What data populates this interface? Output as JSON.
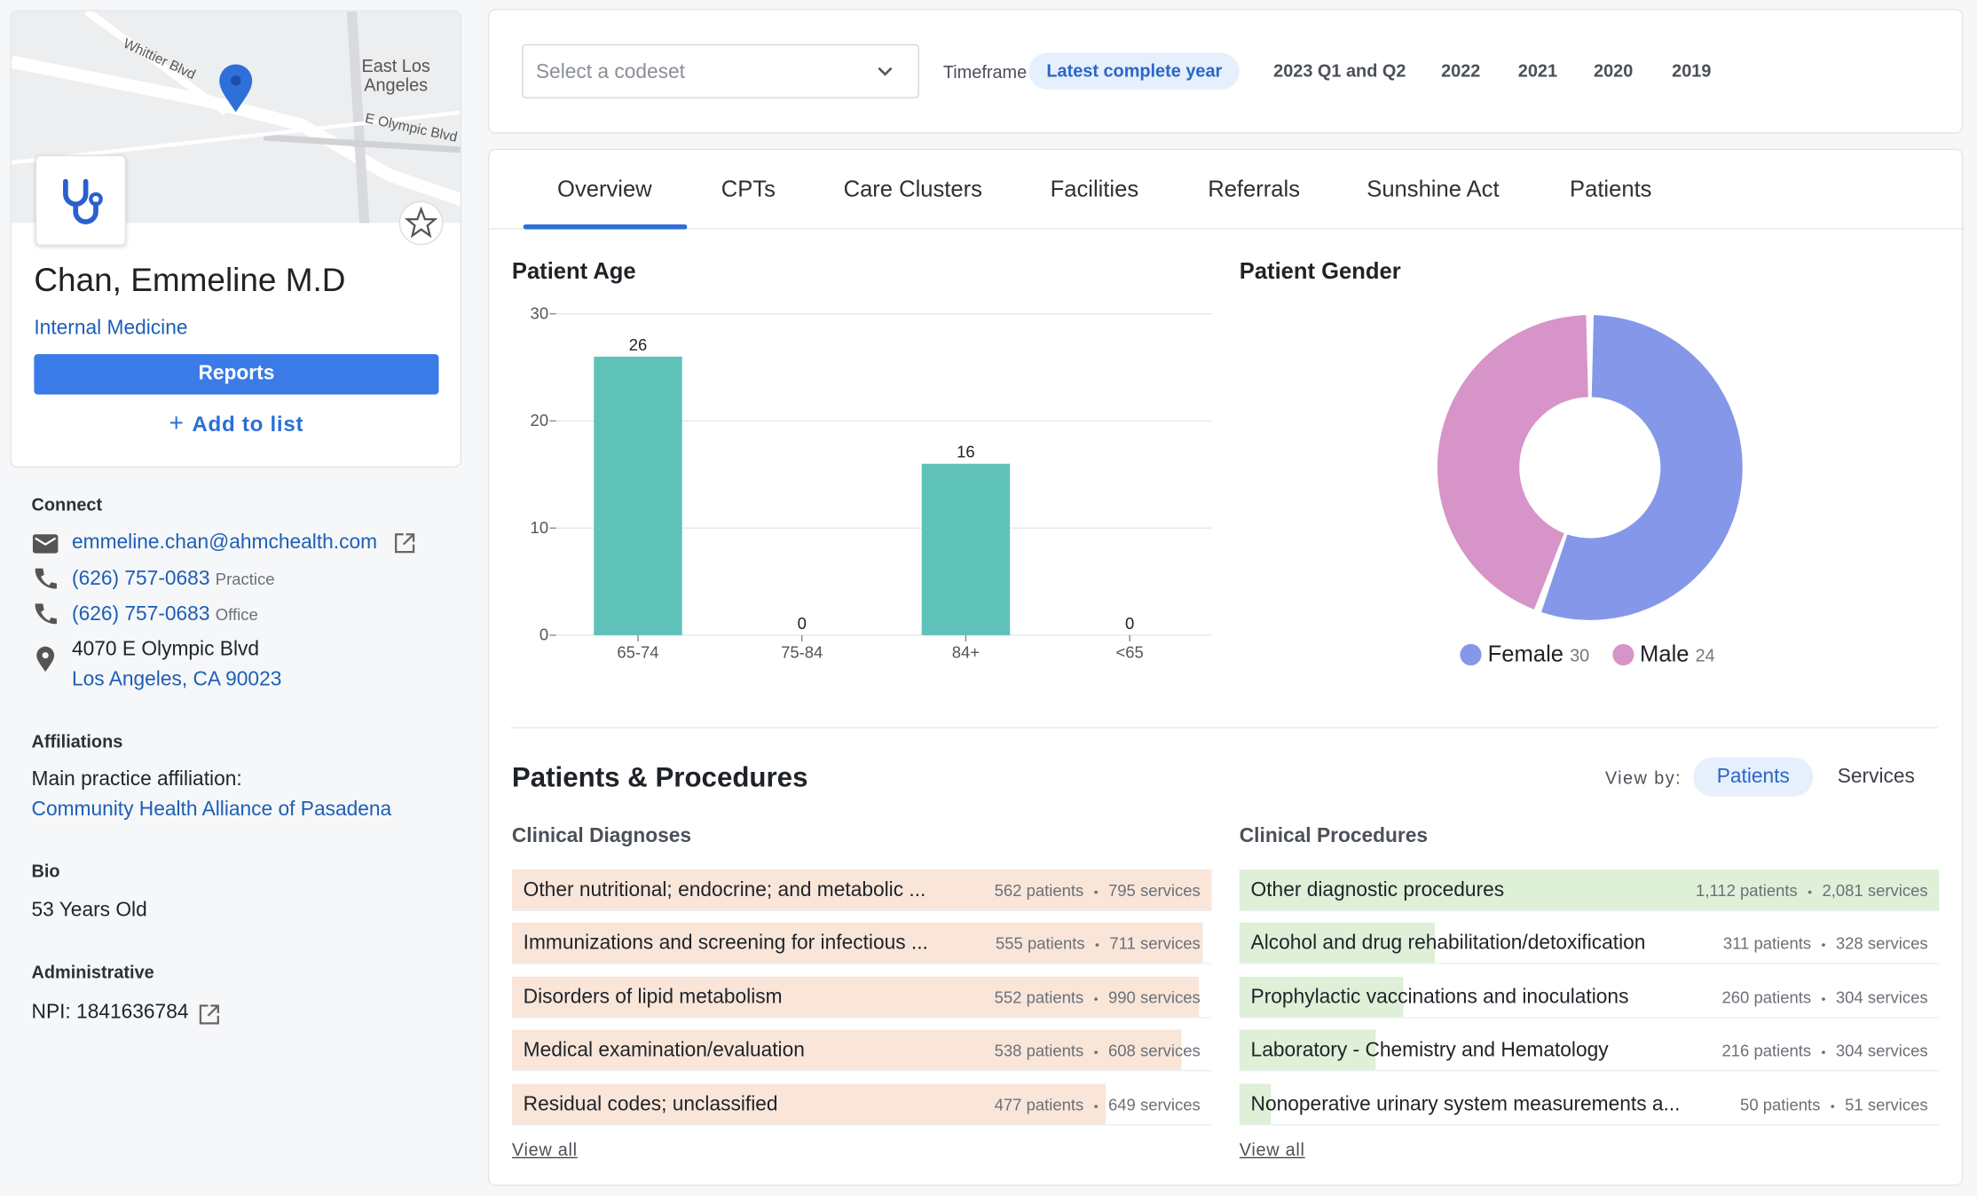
{
  "map": {
    "street_1": "Whittier Blvd",
    "area": "East Los Angeles",
    "street_2": "E Olympic Blvd"
  },
  "profile": {
    "name": "Chan, Emmeline M.D",
    "specialty": "Internal Medicine",
    "reports_button": "Reports",
    "add_to_list": "Add to list"
  },
  "connect": {
    "heading": "Connect",
    "email": "emmeline.chan@ahmchealth.com",
    "phones": [
      {
        "number": "(626) 757-0683",
        "type": "Practice"
      },
      {
        "number": "(626) 757-0683",
        "type": "Office"
      }
    ],
    "address_line1": "4070 E Olympic Blvd",
    "address_line2": "Los Angeles, CA 90023"
  },
  "affiliations": {
    "heading": "Affiliations",
    "label": "Main practice affiliation:",
    "value": "Community Health Alliance of Pasadena"
  },
  "bio": {
    "heading": "Bio",
    "text": "53 Years Old"
  },
  "administrative": {
    "heading": "Administrative",
    "npi": "NPI: 1841636784"
  },
  "filters": {
    "codeset_placeholder": "Select a codeset",
    "timeframe_label": "Timeframe",
    "options": [
      "Latest complete year",
      "2023 Q1 and Q2",
      "2022",
      "2021",
      "2020",
      "2019"
    ]
  },
  "tabs": [
    "Overview",
    "CPTs",
    "Care Clusters",
    "Facilities",
    "Referrals",
    "Sunshine Act",
    "Patients"
  ],
  "age_chart": {
    "type": "bar",
    "title": "Patient Age",
    "categories": [
      "65-74",
      "75-84",
      "84+",
      "<65"
    ],
    "values": [
      26,
      0,
      16,
      0
    ],
    "color": "#5ec2b9",
    "ylim": [
      0,
      30
    ],
    "yticks": [
      0,
      10,
      20,
      30
    ],
    "grid": true
  },
  "gender_chart": {
    "type": "donut",
    "title": "Patient Gender",
    "categories": [
      "Female",
      "Male"
    ],
    "values": [
      30,
      24
    ],
    "colors": [
      "#8497e8",
      "#d794c8"
    ]
  },
  "procedures": {
    "title": "Patients & Procedures",
    "view_by_label": "View by:",
    "view_by_options": [
      "Patients",
      "Services"
    ],
    "separator": "•",
    "diagnoses": {
      "title": "Clinical Diagnoses",
      "view_all": "View all",
      "rows": [
        {
          "label": "Other nutritional; endocrine; and metabolic ...",
          "patients": 562,
          "patients_label": "562 patients",
          "services_label": "795 services"
        },
        {
          "label": "Immunizations and screening for infectious ...",
          "patients": 555,
          "patients_label": "555 patients",
          "services_label": "711 services"
        },
        {
          "label": "Disorders of lipid metabolism",
          "patients": 552,
          "patients_label": "552 patients",
          "services_label": "990 services"
        },
        {
          "label": "Medical examination/evaluation",
          "patients": 538,
          "patients_label": "538 patients",
          "services_label": "608 services"
        },
        {
          "label": "Residual codes; unclassified",
          "patients": 477,
          "patients_label": "477 patients",
          "services_label": "649 services"
        }
      ]
    },
    "clinical_procedures": {
      "title": "Clinical Procedures",
      "view_all": "View all",
      "rows": [
        {
          "label": "Other diagnostic procedures",
          "patients": 1112,
          "patients_label": "1,112 patients",
          "services_label": "2,081 services"
        },
        {
          "label": "Alcohol and drug rehabilitation/detoxification",
          "patients": 311,
          "patients_label": "311 patients",
          "services_label": "328 services"
        },
        {
          "label": "Prophylactic vaccinations and inoculations",
          "patients": 260,
          "patients_label": "260 patients",
          "services_label": "304 services"
        },
        {
          "label": "Laboratory - Chemistry and Hematology",
          "patients": 216,
          "patients_label": "216 patients",
          "services_label": "304 services"
        },
        {
          "label": "Nonoperative urinary system measurements a...",
          "patients": 50,
          "patients_label": "50 patients",
          "services_label": "51 services"
        }
      ]
    }
  }
}
